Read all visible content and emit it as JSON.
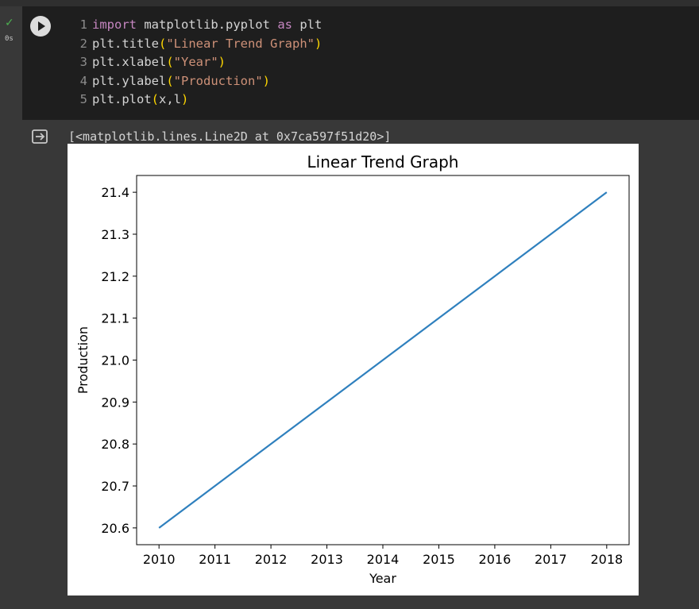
{
  "status": {
    "check": "✓",
    "time": "0s"
  },
  "run_button": {
    "icon": "play-icon"
  },
  "code": {
    "lines": [
      {
        "n": "1",
        "parts": [
          [
            "kw",
            "import"
          ],
          [
            "plain",
            " matplotlib.pyplot "
          ],
          [
            "kw",
            "as"
          ],
          [
            "plain",
            " plt"
          ]
        ]
      },
      {
        "n": "2",
        "parts": [
          [
            "plain",
            "plt.title"
          ],
          [
            "paren",
            "("
          ],
          [
            "str",
            "\"Linear Trend Graph\""
          ],
          [
            "paren",
            ")"
          ]
        ]
      },
      {
        "n": "3",
        "parts": [
          [
            "plain",
            "plt.xlabel"
          ],
          [
            "paren",
            "("
          ],
          [
            "str",
            "\"Year\""
          ],
          [
            "paren",
            ")"
          ]
        ]
      },
      {
        "n": "4",
        "parts": [
          [
            "plain",
            "plt.ylabel"
          ],
          [
            "paren",
            "("
          ],
          [
            "str",
            "\"Production\""
          ],
          [
            "paren",
            ")"
          ]
        ]
      },
      {
        "n": "5",
        "parts": [
          [
            "plain",
            "plt.plot"
          ],
          [
            "paren",
            "("
          ],
          [
            "plain",
            "x,l"
          ],
          [
            "paren",
            ")"
          ]
        ]
      }
    ]
  },
  "output": {
    "text": "[<matplotlib.lines.Line2D at 0x7ca597f51d20>]",
    "icon": "output-arrow-icon"
  },
  "chart_data": {
    "type": "line",
    "title": "Linear Trend Graph",
    "xlabel": "Year",
    "ylabel": "Production",
    "x": [
      2010,
      2011,
      2012,
      2013,
      2014,
      2015,
      2016,
      2017,
      2018
    ],
    "series": [
      {
        "values": [
          20.6,
          20.7,
          20.8,
          20.9,
          21.0,
          21.1,
          21.2,
          21.3,
          21.4
        ]
      }
    ],
    "xticks": [
      "2010",
      "2011",
      "2012",
      "2013",
      "2014",
      "2015",
      "2016",
      "2017",
      "2018"
    ],
    "yticks": [
      "20.6",
      "20.7",
      "20.8",
      "20.9",
      "21.0",
      "21.1",
      "21.2",
      "21.3",
      "21.4"
    ],
    "xlim": [
      2009.6,
      2018.4
    ],
    "ylim": [
      20.56,
      21.44
    ],
    "grid": false,
    "line_color": "#2f80be"
  }
}
